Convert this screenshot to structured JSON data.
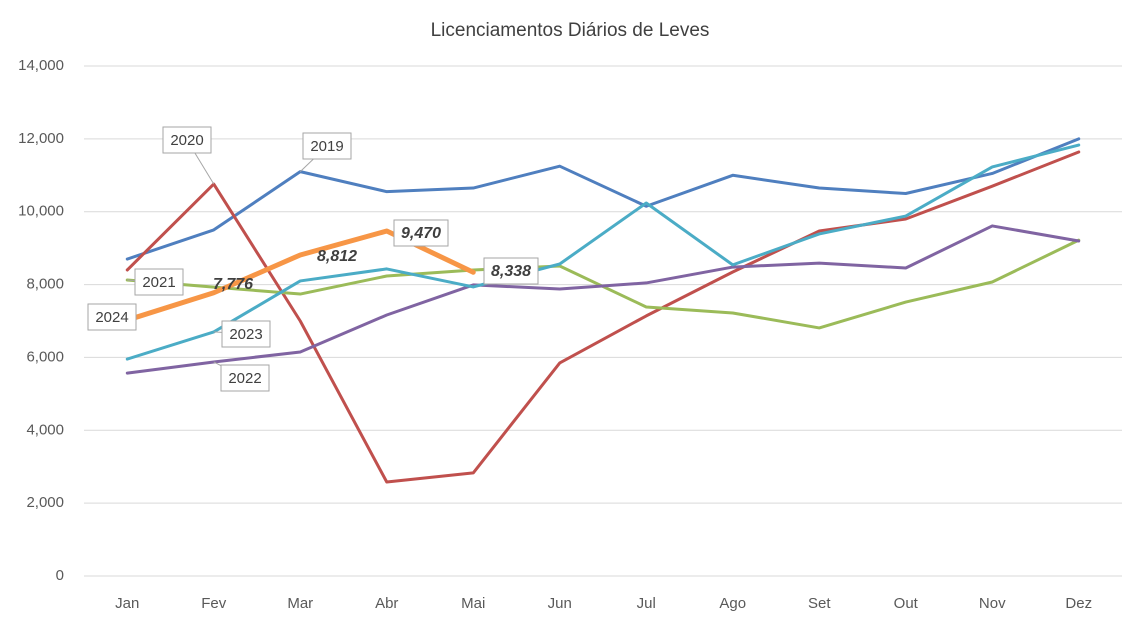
{
  "chart_data": {
    "type": "line",
    "title": "Licenciamentos Diários de Leves",
    "categories": [
      "Jan",
      "Fev",
      "Mar",
      "Abr",
      "Mai",
      "Jun",
      "Jul",
      "Ago",
      "Set",
      "Out",
      "Nov",
      "Dez"
    ],
    "ylim": [
      0,
      14000
    ],
    "yticks": [
      0,
      {
        "value": 2000,
        "label": "2,000"
      },
      {
        "value": 4000,
        "label": "4,000"
      },
      {
        "value": 6000,
        "label": "6,000"
      },
      {
        "value": 8000,
        "label": "8,000"
      },
      {
        "value": 10000,
        "label": "10,000"
      },
      {
        "value": 12000,
        "label": "12,000"
      },
      {
        "value": 14000,
        "label": "14,000"
      }
    ],
    "grid": true,
    "series": [
      {
        "name": "2019",
        "color": "#4f7fbf",
        "values": [
          8700,
          9500,
          11100,
          10550,
          10650,
          11250,
          10150,
          11000,
          10650,
          10500,
          11050,
          12000
        ]
      },
      {
        "name": "2020",
        "color": "#c0504d",
        "values": [
          8400,
          10760,
          7000,
          2580,
          2830,
          5850,
          7140,
          8345,
          9470,
          9800,
          10700,
          11640
        ]
      },
      {
        "name": "2021",
        "color": "#9bbb59",
        "values": [
          8125,
          7930,
          7740,
          8235,
          8400,
          8510,
          7385,
          7220,
          6810,
          7520,
          8070,
          9220
        ]
      },
      {
        "name": "2022",
        "color": "#8064a2",
        "values": [
          5570,
          5875,
          6150,
          7165,
          7990,
          7880,
          8045,
          8480,
          8590,
          8455,
          9610,
          9195
        ]
      },
      {
        "name": "2023",
        "color": "#4bacc6",
        "values": [
          5955,
          6700,
          8100,
          8430,
          7935,
          8565,
          10240,
          8540,
          9390,
          9880,
          11230,
          11830
        ]
      },
      {
        "name": "2024",
        "color": "#f79646",
        "values": [
          7025,
          7776,
          8812,
          9470,
          8338,
          null,
          null,
          null,
          null,
          null,
          null,
          null
        ],
        "value_labels": [
          null,
          "7,776",
          "8,812",
          "9,470",
          "8,338",
          null,
          null,
          null,
          null,
          null,
          null,
          null
        ]
      }
    ]
  }
}
